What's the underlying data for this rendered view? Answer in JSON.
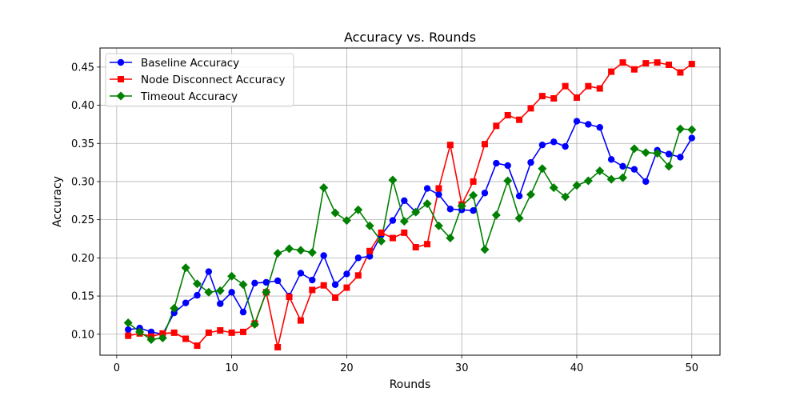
{
  "chart_data": {
    "type": "line",
    "title": "Accuracy vs. Rounds",
    "xlabel": "Rounds",
    "ylabel": "Accuracy",
    "xlim": [
      -1.45,
      52.45
    ],
    "ylim": [
      0.0725,
      0.475
    ],
    "xticks": [
      0,
      10,
      20,
      30,
      40,
      50
    ],
    "yticks": [
      0.1,
      0.15,
      0.2,
      0.25,
      0.3,
      0.35,
      0.4,
      0.45
    ],
    "ytick_labels": [
      "0.10",
      "0.15",
      "0.20",
      "0.25",
      "0.30",
      "0.35",
      "0.40",
      "0.45"
    ],
    "grid": true,
    "legend_position": "upper-left",
    "x": [
      1,
      2,
      3,
      4,
      5,
      6,
      7,
      8,
      9,
      10,
      11,
      12,
      13,
      14,
      15,
      16,
      17,
      18,
      19,
      20,
      21,
      22,
      23,
      24,
      25,
      26,
      27,
      28,
      29,
      30,
      31,
      32,
      33,
      34,
      35,
      36,
      37,
      38,
      39,
      40,
      41,
      42,
      43,
      44,
      45,
      46,
      47,
      48,
      49,
      50
    ],
    "series": [
      {
        "name": "Baseline Accuracy",
        "color": "#0000ff",
        "marker": "circle",
        "values": [
          0.106,
          0.108,
          0.103,
          0.1,
          0.128,
          0.141,
          0.151,
          0.182,
          0.14,
          0.155,
          0.129,
          0.167,
          0.168,
          0.17,
          0.15,
          0.18,
          0.171,
          0.203,
          0.165,
          0.179,
          0.2,
          0.202,
          0.23,
          0.249,
          0.275,
          0.26,
          0.291,
          0.283,
          0.264,
          0.263,
          0.262,
          0.285,
          0.324,
          0.321,
          0.281,
          0.325,
          0.348,
          0.352,
          0.346,
          0.379,
          0.375,
          0.371,
          0.329,
          0.32,
          0.316,
          0.3,
          0.341,
          0.336,
          0.332,
          0.357
        ]
      },
      {
        "name": "Node Disconnect Accuracy",
        "color": "#ff0000",
        "marker": "square",
        "values": [
          0.098,
          0.101,
          0.097,
          0.101,
          0.102,
          0.094,
          0.085,
          0.102,
          0.105,
          0.102,
          0.103,
          0.114,
          0.155,
          0.083,
          0.149,
          0.118,
          0.158,
          0.164,
          0.148,
          0.161,
          0.177,
          0.209,
          0.233,
          0.226,
          0.233,
          0.214,
          0.218,
          0.291,
          0.348,
          0.27,
          0.3,
          0.349,
          0.373,
          0.387,
          0.381,
          0.396,
          0.412,
          0.409,
          0.425,
          0.41,
          0.425,
          0.422,
          0.444,
          0.456,
          0.447,
          0.455,
          0.456,
          0.453,
          0.443,
          0.454
        ]
      },
      {
        "name": "Timeout Accuracy",
        "color": "#008000",
        "marker": "diamond",
        "values": [
          0.115,
          0.103,
          0.093,
          0.095,
          0.134,
          0.187,
          0.166,
          0.155,
          0.157,
          0.176,
          0.165,
          0.113,
          0.155,
          0.206,
          0.212,
          0.21,
          0.207,
          0.292,
          0.259,
          0.249,
          0.263,
          0.242,
          0.222,
          0.302,
          0.248,
          0.26,
          0.271,
          0.242,
          0.226,
          0.268,
          0.282,
          0.211,
          0.256,
          0.301,
          0.252,
          0.283,
          0.317,
          0.292,
          0.28,
          0.295,
          0.301,
          0.314,
          0.303,
          0.305,
          0.343,
          0.338,
          0.337,
          0.32,
          0.369,
          0.368
        ]
      }
    ]
  }
}
